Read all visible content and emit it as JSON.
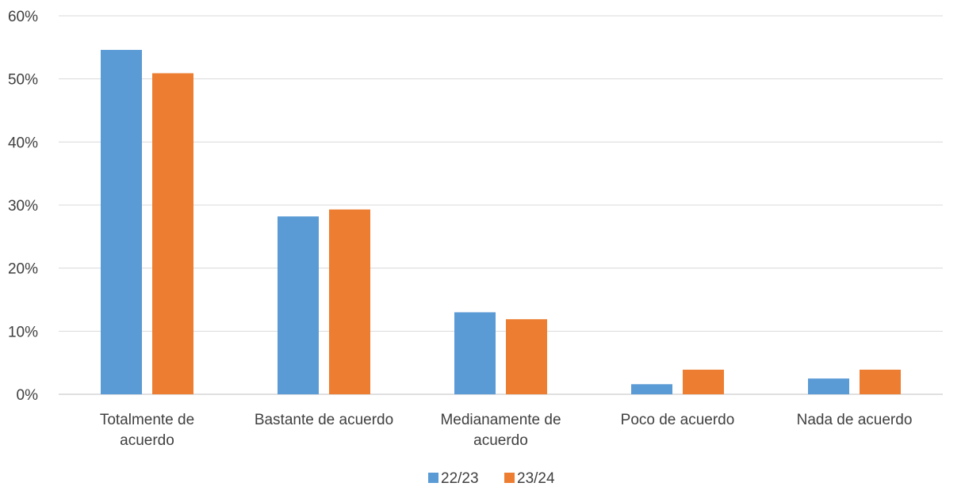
{
  "chart_data": {
    "type": "bar",
    "categories": [
      [
        "Totalmente de",
        "acuerdo"
      ],
      [
        "Bastante de acuerdo"
      ],
      [
        "Medianamente de",
        "acuerdo"
      ],
      [
        "Poco de acuerdo"
      ],
      [
        "Nada de acuerdo"
      ]
    ],
    "series": [
      {
        "name": "22/23",
        "color": "#5B9BD5",
        "values": [
          54.6,
          28.2,
          13.0,
          1.6,
          2.5
        ]
      },
      {
        "name": "23/24",
        "color": "#ED7D31",
        "values": [
          50.9,
          29.3,
          11.9,
          3.9,
          3.9
        ]
      }
    ],
    "y_ticks": [
      "0%",
      "10%",
      "20%",
      "30%",
      "40%",
      "50%",
      "60%"
    ],
    "ylim": [
      0,
      60
    ],
    "grid": true,
    "legend_position": "bottom",
    "title": "",
    "xlabel": "",
    "ylabel": ""
  }
}
